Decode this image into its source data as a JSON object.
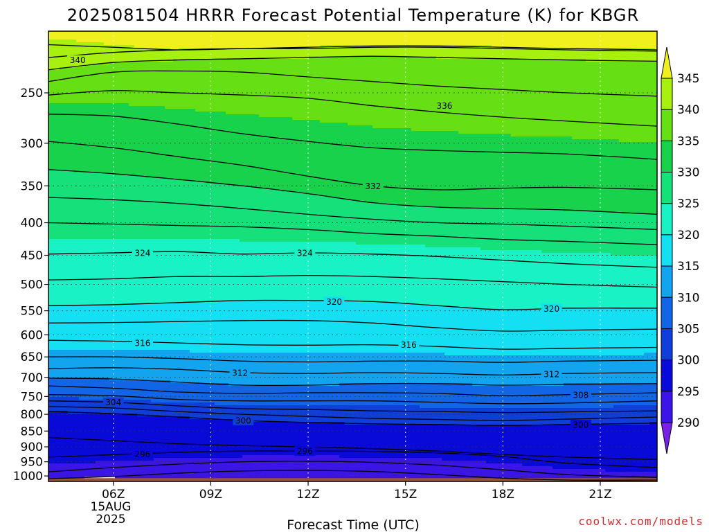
{
  "chart_data": {
    "type": "heatmap",
    "title": "2025081504 HRRR Forecast Potential Temperature (K) for KBGR",
    "xlabel": "Forecast Time (UTC)",
    "ylabel": "",
    "x_start_hour": 4,
    "x_end_hour": 22.75,
    "x_ticks": [
      {
        "hour": 6,
        "label": "06Z"
      },
      {
        "hour": 9,
        "label": "09Z"
      },
      {
        "hour": 12,
        "label": "12Z"
      },
      {
        "hour": 15,
        "label": "15Z"
      },
      {
        "hour": 18,
        "label": "18Z"
      },
      {
        "hour": 21,
        "label": "21Z"
      }
    ],
    "date_label": [
      "15AUG",
      "2025"
    ],
    "y_axis": "pressure (hPa), log scale, inverted",
    "y_ticks": [
      250,
      300,
      350,
      400,
      450,
      500,
      550,
      600,
      650,
      700,
      750,
      800,
      850,
      900,
      950,
      1000
    ],
    "ylim": [
      200,
      1020
    ],
    "colorbar": {
      "levels": [
        290,
        295,
        300,
        305,
        310,
        315,
        320,
        325,
        330,
        335,
        340,
        345
      ],
      "colors": [
        "#7a1fe8",
        "#3b14e6",
        "#0a0ad8",
        "#0f3fd8",
        "#1266e6",
        "#13a4f0",
        "#15dff2",
        "#19f2c4",
        "#16e07a",
        "#19d24b",
        "#66e014",
        "#a8f00f",
        "#f0f01e"
      ],
      "labels": [
        "290",
        "295",
        "300",
        "305",
        "310",
        "315",
        "320",
        "325",
        "330",
        "335",
        "340",
        "345"
      ]
    },
    "hours": [
      4,
      6,
      8,
      10,
      12,
      14,
      16,
      18,
      20,
      22.75
    ],
    "isentropes": [
      {
        "theta": 344,
        "p": [
          210,
          212,
          214,
          213,
          212,
          211,
          211,
          212,
          213,
          214
        ]
      },
      {
        "theta": 342,
        "p": [
          220,
          216,
          214,
          213,
          213,
          212,
          212,
          213,
          214,
          215
        ]
      },
      {
        "theta": 340,
        "p": [
          230,
          224,
          222,
          221,
          220,
          219,
          220,
          221,
          222,
          223
        ]
      },
      {
        "theta": 338,
        "p": [
          240,
          232,
          231,
          232,
          236,
          240,
          244,
          247,
          250,
          253
        ]
      },
      {
        "theta": 336,
        "p": [
          252,
          248,
          250,
          252,
          255,
          262,
          268,
          273,
          277,
          282
        ]
      },
      {
        "theta": 334,
        "p": [
          270,
          272,
          280,
          290,
          298,
          305,
          308,
          310,
          312,
          318
        ]
      },
      {
        "theta": 332,
        "p": [
          298,
          305,
          315,
          325,
          338,
          350,
          355,
          353,
          352,
          355
        ]
      },
      {
        "theta": 330,
        "p": [
          330,
          335,
          342,
          350,
          360,
          372,
          378,
          380,
          382,
          388
        ]
      },
      {
        "theta": 328,
        "p": [
          365,
          368,
          373,
          380,
          388,
          395,
          400,
          402,
          405,
          410
        ]
      },
      {
        "theta": 326,
        "p": [
          400,
          402,
          404,
          406,
          410,
          416,
          420,
          425,
          428,
          433
        ]
      },
      {
        "theta": 324,
        "p": [
          448,
          446,
          444,
          448,
          446,
          448,
          452,
          458,
          464,
          470
        ]
      },
      {
        "theta": 322,
        "p": [
          492,
          490,
          486,
          486,
          484,
          486,
          490,
          495,
          500,
          505
        ]
      },
      {
        "theta": 320,
        "p": [
          540,
          538,
          534,
          530,
          530,
          532,
          540,
          548,
          545,
          545
        ]
      },
      {
        "theta": 318,
        "p": [
          575,
          574,
          572,
          570,
          570,
          575,
          585,
          592,
          590,
          588
        ]
      },
      {
        "theta": 316,
        "p": [
          612,
          614,
          618,
          622,
          623,
          622,
          626,
          632,
          630,
          628
        ]
      },
      {
        "theta": 314,
        "p": [
          650,
          650,
          654,
          660,
          662,
          660,
          660,
          663,
          660,
          658
        ]
      },
      {
        "theta": 312,
        "p": [
          678,
          676,
          680,
          688,
          690,
          688,
          690,
          694,
          690,
          688
        ]
      },
      {
        "theta": 310,
        "p": [
          702,
          704,
          712,
          720,
          720,
          716,
          716,
          720,
          718,
          716
        ]
      },
      {
        "theta": 308,
        "p": [
          722,
          728,
          738,
          742,
          740,
          740,
          742,
          748,
          745,
          740
        ]
      },
      {
        "theta": 306,
        "p": [
          745,
          748,
          758,
          762,
          762,
          762,
          766,
          770,
          768,
          762
        ]
      },
      {
        "theta": 304,
        "p": [
          762,
          766,
          776,
          784,
          786,
          790,
          792,
          795,
          793,
          790
        ]
      },
      {
        "theta": 302,
        "p": [
          778,
          782,
          792,
          800,
          806,
          812,
          815,
          818,
          814,
          808
        ]
      },
      {
        "theta": 300,
        "p": [
          792,
          798,
          808,
          818,
          824,
          828,
          830,
          833,
          830,
          826
        ]
      },
      {
        "theta": 298,
        "p": [
          870,
          880,
          890,
          896,
          900,
          906,
          914,
          925,
          934,
          942
        ]
      },
      {
        "theta": 296,
        "p": [
          934,
          926,
          918,
          914,
          914,
          915,
          920,
          932,
          955,
          970
        ]
      },
      {
        "theta": 294,
        "p": [
          985,
          970,
          958,
          950,
          948,
          952,
          962,
          978,
          995,
          1005
        ]
      },
      {
        "theta": 292,
        "p": [
          1010,
          1002,
          990,
          982,
          980,
          984,
          995,
          1008,
          1015,
          1015
        ]
      }
    ],
    "contour_labels": [
      {
        "text": "340",
        "hour": 4.9,
        "p": 222
      },
      {
        "text": "336",
        "hour": 16.2,
        "p": 262
      },
      {
        "text": "332",
        "hour": 14.0,
        "p": 350
      },
      {
        "text": "324",
        "hour": 6.9,
        "p": 446
      },
      {
        "text": "324",
        "hour": 11.9,
        "p": 446
      },
      {
        "text": "320",
        "hour": 12.8,
        "p": 532
      },
      {
        "text": "320",
        "hour": 19.5,
        "p": 546
      },
      {
        "text": "316",
        "hour": 6.9,
        "p": 618
      },
      {
        "text": "316",
        "hour": 15.1,
        "p": 622
      },
      {
        "text": "312",
        "hour": 9.9,
        "p": 688
      },
      {
        "text": "312",
        "hour": 19.5,
        "p": 692
      },
      {
        "text": "308",
        "hour": 20.4,
        "p": 746
      },
      {
        "text": "304",
        "hour": 6.0,
        "p": 766
      },
      {
        "text": "300",
        "hour": 10.0,
        "p": 818
      },
      {
        "text": "300",
        "hour": 20.4,
        "p": 830
      },
      {
        "text": "296",
        "hour": 6.9,
        "p": 924
      },
      {
        "text": "296",
        "hour": 11.9,
        "p": 914
      }
    ],
    "ground_color": "#a0522d",
    "grid": "dotted"
  },
  "credit": "coolwx.com/models"
}
